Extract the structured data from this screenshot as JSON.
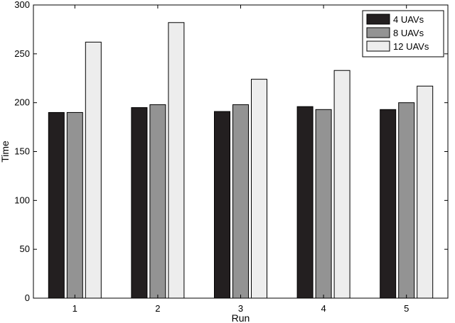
{
  "chart_data": {
    "type": "bar",
    "categories": [
      "1",
      "2",
      "3",
      "4",
      "5"
    ],
    "series": [
      {
        "name": "4 UAVs",
        "values": [
          190,
          195,
          191,
          196,
          193
        ],
        "color": "#231f20"
      },
      {
        "name": "8 UAVs",
        "values": [
          190,
          198,
          198,
          193,
          200
        ],
        "color": "#939393"
      },
      {
        "name": "12 UAVs",
        "values": [
          262,
          282,
          224,
          233,
          217
        ],
        "color": "#ededed"
      }
    ],
    "title": "",
    "xlabel": "Run",
    "ylabel": "Time",
    "ylim": [
      0,
      300
    ],
    "yticks": [
      "0",
      "50",
      "100",
      "150",
      "200",
      "250",
      "300"
    ],
    "grid": false,
    "legend_position": "top-right"
  }
}
